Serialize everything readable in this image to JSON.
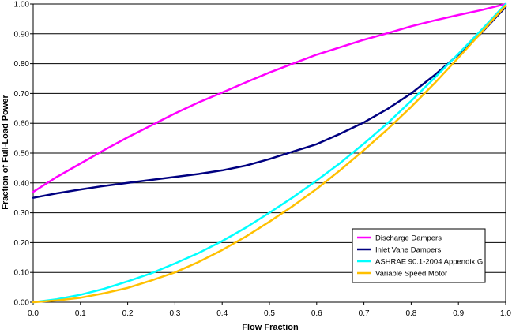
{
  "chart_data": {
    "type": "line",
    "title": "",
    "xlabel": "Flow Fraction",
    "ylabel": "Fraction of Full-Load Power",
    "xlim": [
      0,
      1
    ],
    "ylim": [
      0,
      1
    ],
    "x_ticks": [
      "0.0",
      "0.1",
      "0.2",
      "0.3",
      "0.4",
      "0.5",
      "0.6",
      "0.7",
      "0.8",
      "0.9",
      "1.0"
    ],
    "y_ticks": [
      "0.00",
      "0.10",
      "0.20",
      "0.30",
      "0.40",
      "0.50",
      "0.60",
      "0.70",
      "0.80",
      "0.90",
      "1.00"
    ],
    "grid": "horizontal",
    "legend_position": "bottom-right",
    "x": [
      0,
      0.05,
      0.1,
      0.15,
      0.2,
      0.25,
      0.3,
      0.35,
      0.4,
      0.45,
      0.5,
      0.55,
      0.6,
      0.65,
      0.7,
      0.75,
      0.8,
      0.85,
      0.9,
      0.95,
      1.0
    ],
    "series": [
      {
        "name": "Discharge Dampers",
        "color": "#ff00ff",
        "values": [
          0.37,
          0.42,
          0.465,
          0.51,
          0.553,
          0.593,
          0.633,
          0.67,
          0.703,
          0.737,
          0.77,
          0.8,
          0.83,
          0.855,
          0.88,
          0.902,
          0.925,
          0.945,
          0.963,
          0.98,
          1.0
        ]
      },
      {
        "name": "Inlet Vane Dampers",
        "color": "#000080",
        "values": [
          0.35,
          0.365,
          0.378,
          0.39,
          0.4,
          0.41,
          0.42,
          0.43,
          0.442,
          0.458,
          0.48,
          0.505,
          0.53,
          0.565,
          0.603,
          0.648,
          0.7,
          0.762,
          0.83,
          0.905,
          0.99
        ]
      },
      {
        "name": "ASHRAE 90.1-2004 Appendix G",
        "color": "#00ffff",
        "values": [
          0.0,
          0.01,
          0.025,
          0.045,
          0.07,
          0.097,
          0.13,
          0.165,
          0.205,
          0.25,
          0.3,
          0.352,
          0.408,
          0.467,
          0.532,
          0.6,
          0.675,
          0.753,
          0.833,
          0.915,
          1.0
        ]
      },
      {
        "name": "Variable Speed Motor",
        "color": "#ffc000",
        "values": [
          0.0,
          0.006,
          0.015,
          0.03,
          0.048,
          0.073,
          0.1,
          0.135,
          0.175,
          0.22,
          0.27,
          0.323,
          0.38,
          0.443,
          0.51,
          0.58,
          0.655,
          0.735,
          0.82,
          0.907,
          0.995
        ]
      }
    ]
  }
}
